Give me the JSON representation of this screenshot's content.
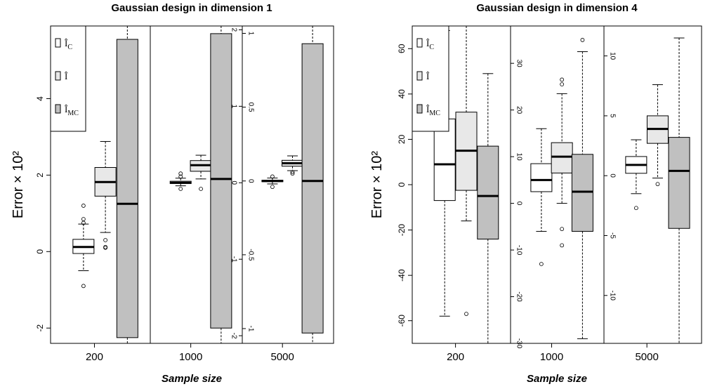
{
  "chart_data": [
    {
      "type": "box",
      "title": "Gaussian design in dimension 1",
      "xlabel": "Sample size",
      "ylabel": "Error × 10²",
      "legend": {
        "placement": "top-left",
        "entries": [
          {
            "label": "Î_C",
            "color": "#ffffff"
          },
          {
            "label": "Î",
            "color": "#e8e8e8"
          },
          {
            "label": "Î_MC",
            "color": "#c0c0c0"
          }
        ]
      },
      "panels": [
        {
          "sample_size": "200",
          "axis_side": "left",
          "ylim": [
            -2.4,
            5.9
          ],
          "ticks": [
            -2,
            0,
            2,
            4
          ],
          "boxes": [
            {
              "series": "Î_C",
              "whislo": -0.5,
              "q1": -0.05,
              "med": 0.12,
              "q3": 0.32,
              "whishi": 0.72,
              "fliers": [
                -0.9,
                0.75,
                0.85,
                1.2
              ]
            },
            {
              "series": "Î",
              "whislo": 0.5,
              "q1": 1.45,
              "med": 1.82,
              "q3": 2.2,
              "whishi": 2.88,
              "fliers": [
                0.1,
                0.12,
                0.3
              ]
            },
            {
              "series": "Î_MC",
              "whislo": -2.4,
              "q1": -2.25,
              "med": 1.25,
              "q3": 5.55,
              "whishi": 5.9,
              "fliers": []
            }
          ]
        },
        {
          "sample_size": "1000",
          "axis_side": "right",
          "ylim": [
            -2.1,
            2.05
          ],
          "ticks": [
            -2,
            -1,
            0,
            1,
            2
          ],
          "boxes": [
            {
              "series": "Î_C",
              "whislo": -0.04,
              "q1": -0.01,
              "med": 0.0,
              "q3": 0.02,
              "whishi": 0.06,
              "fliers": [
                -0.08,
                0.08,
                0.12
              ]
            },
            {
              "series": "Î",
              "whislo": 0.05,
              "q1": 0.15,
              "med": 0.23,
              "q3": 0.29,
              "whishi": 0.36,
              "fliers": [
                -0.08
              ]
            },
            {
              "series": "Î_MC",
              "whislo": -2.1,
              "q1": -1.9,
              "med": 0.05,
              "q3": 1.95,
              "whishi": 2.05,
              "fliers": []
            }
          ]
        },
        {
          "sample_size": "5000",
          "axis_side": "left",
          "ylim": [
            -1.1,
            1.05
          ],
          "ticks": [
            -1.0,
            -0.5,
            0.0,
            0.5,
            1.0
          ],
          "boxes": [
            {
              "series": "Î_C",
              "whislo": -0.02,
              "q1": -0.005,
              "med": 0.0,
              "q3": 0.005,
              "whishi": 0.02,
              "fliers": [
                -0.04,
                0.03
              ]
            },
            {
              "series": "Î",
              "whislo": 0.07,
              "q1": 0.1,
              "med": 0.12,
              "q3": 0.14,
              "whishi": 0.17,
              "fliers": [
                0.05,
                0.06
              ]
            },
            {
              "series": "Î_MC",
              "whislo": -1.1,
              "q1": -1.03,
              "med": 0.0,
              "q3": 0.93,
              "whishi": 1.05,
              "fliers": []
            }
          ]
        }
      ]
    },
    {
      "type": "box",
      "title": "Gaussian design in dimension 4",
      "xlabel": "Sample size",
      "ylabel": "Error × 10²",
      "legend": {
        "placement": "top-left",
        "entries": [
          {
            "label": "Î_C",
            "color": "#ffffff"
          },
          {
            "label": "Î",
            "color": "#e8e8e8"
          },
          {
            "label": "Î_MC",
            "color": "#c0c0c0"
          }
        ]
      },
      "panels": [
        {
          "sample_size": "200",
          "axis_side": "left",
          "ylim": [
            -70,
            70
          ],
          "ticks": [
            -60,
            -40,
            -20,
            0,
            20,
            40,
            60
          ],
          "boxes": [
            {
              "series": "Î_C",
              "whislo": -58,
              "q1": -7,
              "med": 9,
              "q3": 29,
              "whishi": 68,
              "fliers": []
            },
            {
              "series": "Î",
              "whislo": -16,
              "q1": -2.5,
              "med": 15,
              "q3": 32,
              "whishi": 70,
              "fliers": [
                -57
              ]
            },
            {
              "series": "Î_MC",
              "whislo": -70,
              "q1": -24,
              "med": -5,
              "q3": 17,
              "whishi": 49,
              "fliers": []
            }
          ]
        },
        {
          "sample_size": "1000",
          "axis_side": "left",
          "ylim": [
            -30,
            38
          ],
          "ticks": [
            -30,
            -20,
            -10,
            0,
            10,
            20,
            30
          ],
          "boxes": [
            {
              "series": "Î_C",
              "whislo": -6,
              "q1": 2.5,
              "med": 5,
              "q3": 8.5,
              "whishi": 16,
              "fliers": [
                -13
              ]
            },
            {
              "series": "Î",
              "whislo": 0,
              "q1": 6.5,
              "med": 10,
              "q3": 13,
              "whishi": 23.5,
              "fliers": [
                -5.5,
                -9,
                25.5,
                26.5
              ]
            },
            {
              "series": "Î_MC",
              "whislo": -29,
              "q1": -6,
              "med": 2.5,
              "q3": 10.5,
              "whishi": 32.5,
              "fliers": [
                35
              ]
            }
          ]
        },
        {
          "sample_size": "5000",
          "axis_side": "left",
          "ylim": [
            -14,
            12.5
          ],
          "ticks": [
            -10,
            -5,
            0,
            5,
            10
          ],
          "boxes": [
            {
              "series": "Î_C",
              "whislo": -1.5,
              "q1": 0.2,
              "med": 0.9,
              "q3": 1.6,
              "whishi": 3.0,
              "fliers": [
                -2.7
              ]
            },
            {
              "series": "Î",
              "whislo": -0.2,
              "q1": 2.7,
              "med": 3.9,
              "q3": 5.0,
              "whishi": 7.6,
              "fliers": [
                -0.7
              ]
            },
            {
              "series": "Î_MC",
              "whislo": -14,
              "q1": -4.4,
              "med": 0.4,
              "q3": 3.2,
              "whishi": 11.5,
              "fliers": []
            }
          ]
        }
      ]
    }
  ]
}
